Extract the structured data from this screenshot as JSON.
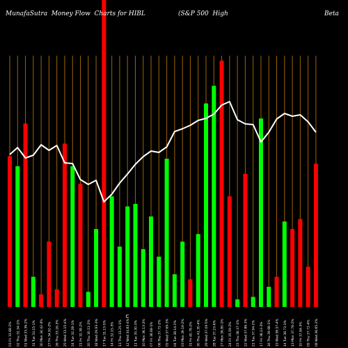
{
  "chart_data": {
    "type": "bar",
    "title_left": "MunafaSutra  Money Flow  Charts for HIBL",
    "title_mid": "(S&P 500  High",
    "title_right": "Beta",
    "center_label": "C",
    "colors": {
      "background": "#000000",
      "up_bar": "#00ff00",
      "down_bar": "#ff0000",
      "grid_line": "#a0640a",
      "price_line": "#ffffff",
      "text": "#ffffff"
    },
    "x_labels": [
      "03 Fri 33.68-2%",
      "02 Thu 32.34-1%",
      "01 Wed 33.36-2%",
      "31 Tue 33.15-1%",
      "30 Mon 34.42-4%",
      "27 Fri 34.92-2%",
      "26 Thu 33.16-3%",
      "25 Wed 33.15-4%",
      "24 Tue 32.28-1%",
      "21 Fri 32.38-2%",
      "20 Thu 30.11-2%",
      "18 Wed 29.93-3%",
      "17 Tue 31.13-5%",
      "14 Fri 32.15-3%",
      "13 Thu 33.25-1%",
      "12 Wed 34.83-4%",
      "11 Tue 35.30-3%",
      "10 Mon 36.13-2%",
      "07 Fri 36.68-1%",
      "06 Thu 37.72-2%",
      "05 Wed 37.69-3%",
      "04 Tue 38.14-2%",
      "03 Mon 39.16-2%",
      "31 Fri 40.78-2%",
      "30 Thu 41.30-4%",
      "29 Wed 37.09-5%",
      "28 Tue 37.23-6%",
      "27 Mon 36.80-1%",
      "24 Fri 35.59-2%",
      "23 Thu 36.37-1%",
      "22 Wed 37.86-3%",
      "21 Tue 37.94-2%",
      "17 Fri 38.13-3%",
      "16 Thu 39.98-1%",
      "15 Wed 38.57-4%",
      "14 Tue 38.73-3%",
      "13 Mon 37.78-2%",
      "10 Fri 37.84-3%",
      "09 Thu 37.72-4%",
      "08 Wed 36.65-2%"
    ],
    "bars": [
      {
        "color": "red",
        "height": 60
      },
      {
        "color": "green",
        "height": 56
      },
      {
        "color": "red",
        "height": 73
      },
      {
        "color": "green",
        "height": 12
      },
      {
        "color": "red",
        "height": 5
      },
      {
        "color": "red",
        "height": 26
      },
      {
        "color": "red",
        "height": 7
      },
      {
        "color": "red",
        "height": 65
      },
      {
        "color": "green",
        "height": 56
      },
      {
        "color": "red",
        "height": 49
      },
      {
        "color": "green",
        "height": 6
      },
      {
        "color": "green",
        "height": 31
      },
      {
        "color": "red",
        "height": 100
      },
      {
        "color": "green",
        "height": 44
      },
      {
        "color": "green",
        "height": 24
      },
      {
        "color": "green",
        "height": 40
      },
      {
        "color": "green",
        "height": 41
      },
      {
        "color": "green",
        "height": 23
      },
      {
        "color": "green",
        "height": 36
      },
      {
        "color": "green",
        "height": 20
      },
      {
        "color": "green",
        "height": 59
      },
      {
        "color": "green",
        "height": 13
      },
      {
        "color": "green",
        "height": 26
      },
      {
        "color": "red",
        "height": 11
      },
      {
        "color": "green",
        "height": 29
      },
      {
        "color": "green",
        "height": 81
      },
      {
        "color": "green",
        "height": 88
      },
      {
        "color": "red",
        "height": 98
      },
      {
        "color": "red",
        "height": 44
      },
      {
        "color": "green",
        "height": 3
      },
      {
        "color": "red",
        "height": 53
      },
      {
        "color": "green",
        "height": 4
      },
      {
        "color": "green",
        "height": 75
      },
      {
        "color": "green",
        "height": 8
      },
      {
        "color": "red",
        "height": 12
      },
      {
        "color": "green",
        "height": 34
      },
      {
        "color": "red",
        "height": 31
      },
      {
        "color": "red",
        "height": 35
      },
      {
        "color": "red",
        "height": 16
      },
      {
        "color": "red",
        "height": 57
      }
    ],
    "price_line": [
      222,
      212,
      227,
      223,
      208,
      216,
      209,
      234,
      235,
      258,
      265,
      259,
      290,
      279,
      263,
      250,
      236,
      225,
      217,
      219,
      211,
      189,
      185,
      180,
      173,
      170,
      164,
      151,
      146,
      172,
      178,
      179,
      204,
      190,
      171,
      163,
      167,
      165,
      175,
      190
    ]
  }
}
